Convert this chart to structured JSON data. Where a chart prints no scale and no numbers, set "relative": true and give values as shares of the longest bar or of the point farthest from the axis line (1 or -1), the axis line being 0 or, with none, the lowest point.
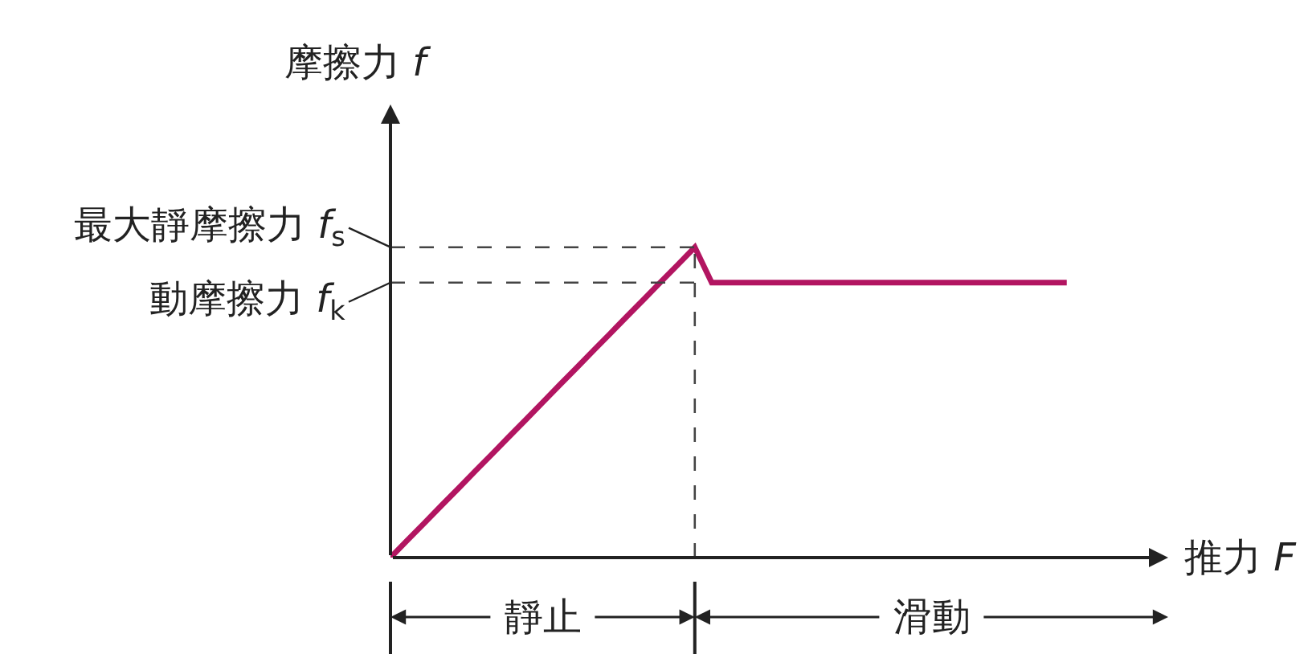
{
  "chart_data": {
    "type": "line",
    "relative": true,
    "xlabel": "推力 F",
    "ylabel": "摩擦力 f",
    "categories": [
      null,
      null,
      null,
      null,
      null,
      null,
      null,
      null,
      null,
      null,
      null,
      null,
      null,
      null,
      null,
      null,
      null,
      null,
      null,
      null,
      null,
      null,
      null,
      null,
      null,
      null,
      null,
      null,
      null,
      null,
      null,
      null,
      null,
      null,
      null,
      null,
      null,
      null,
      null,
      null,
      null
    ],
    "values": [
      0,
      0.056,
      0.111,
      0.167,
      0.222,
      0.278,
      0.333,
      0.389,
      0.444,
      0.5,
      0.556,
      0.611,
      0.667,
      0.722,
      0.778,
      0.833,
      0.889,
      0.944,
      1,
      0.886,
      0.886,
      0.886,
      0.886,
      0.886,
      0.886,
      0.886,
      0.886,
      0.886,
      0.886,
      0.886,
      0.886,
      0.886,
      0.886,
      0.886,
      0.886,
      0.886,
      0.886,
      0.886,
      0.886,
      0.886,
      0.886
    ],
    "color": "#b21561",
    "marker": "none",
    "line_style": "solid",
    "ref_lines": [
      {
        "axis": "y",
        "value": 1,
        "label": "最大靜摩擦力 f$_{s}$",
        "line_style": "dashed",
        "color": "#444444"
      },
      {
        "axis": "y",
        "value": 0.886,
        "label": "動摩擦力 f$_{k}$",
        "line_style": "dashed",
        "color": "#444444"
      }
    ],
    "annotations": [
      "靜止",
      "滑動"
    ]
  }
}
